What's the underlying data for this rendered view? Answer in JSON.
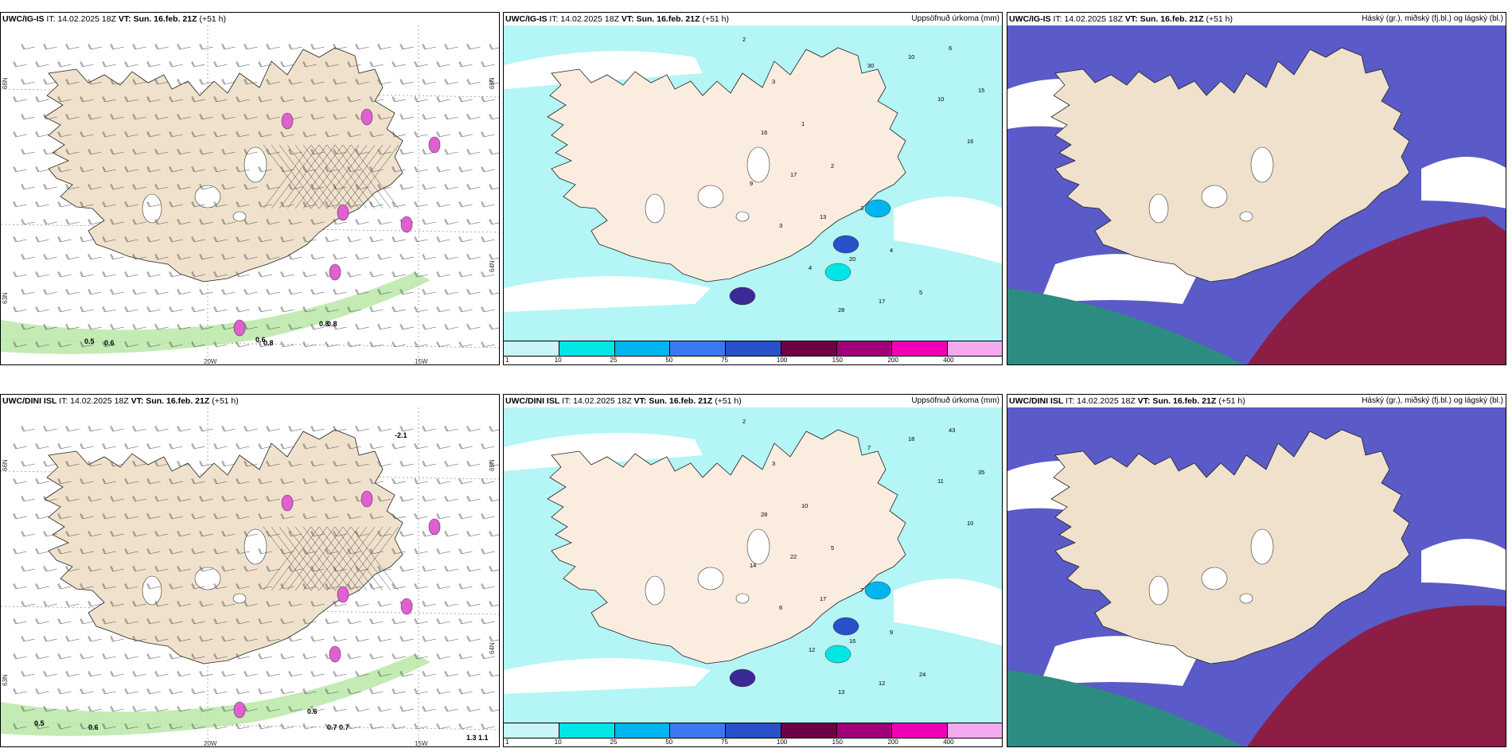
{
  "panels": [
    {
      "model": "UWC/IG-IS",
      "init": "IT: 14.02.2025 18Z",
      "valid": "VT: Sun. 16.feb. 21Z",
      "lead": "(+51 h)",
      "right_title": "",
      "kind": "wind"
    },
    {
      "model": "UWC/IG-IS",
      "init": "IT: 14.02.2025 18Z",
      "valid": "VT: Sun. 16.feb. 21Z",
      "lead": "(+51 h)",
      "right_title": "Uppsöfnuð úrkoma (mm)",
      "kind": "precip"
    },
    {
      "model": "UWC/IG-IS",
      "init": "IT: 14.02.2025 18Z",
      "valid": "VT: Sun. 16.feb. 21Z",
      "lead": "(+51 h)",
      "right_title": "Háský (gr.), miðský (fj.bl.) og lágský (bl.)",
      "kind": "cloud"
    },
    {
      "model": "UWC/DINI ISL",
      "init": "IT: 14.02.2025 18Z",
      "valid": "VT: Sun. 16.feb. 21Z",
      "lead": "(+51 h)",
      "right_title": "",
      "kind": "wind"
    },
    {
      "model": "UWC/DINI ISL",
      "init": "IT: 14.02.2025 18Z",
      "valid": "VT: Sun. 16.feb. 21Z",
      "lead": "(+51 h)",
      "right_title": "Uppsöfnuð úrkoma (mm)",
      "kind": "precip"
    },
    {
      "model": "UWC/DINI ISL",
      "init": "IT: 14.02.2025 18Z",
      "valid": "VT: Sun. 16.feb. 21Z",
      "lead": "(+51 h)",
      "right_title": "Háský (gr.), miðský (fj.bl.) og lágský (bl.)",
      "kind": "cloud"
    }
  ],
  "axis_labels": {
    "lon_20w": "20W",
    "lon_15w": "15W",
    "lat_66n": "66N",
    "lat_64n": "64N",
    "lat_65n": "65N",
    "lat_63n": "63N"
  },
  "precip_legend": {
    "labels": [
      "1",
      "10",
      "25",
      "50",
      "75",
      "100",
      "150",
      "200",
      "400"
    ],
    "colors": [
      "#c8f5f5",
      "#00e6e6",
      "#00b4f0",
      "#3c78f0",
      "#2850c8",
      "#6e0046",
      "#a00078",
      "#f000b4",
      "#f5aaf0"
    ]
  },
  "colors": {
    "land": "#f0e1cc",
    "land_precip": "#fbece0",
    "precip_light": "#b4f5f5",
    "precip_mid": "#00e6e6",
    "cloud_high": "#5a5ac8",
    "cloud_low": "#8c1e46",
    "cloud_teal": "#2d8c82",
    "green_band": "#b4e6a0"
  },
  "wind_labels_top": [
    "0.5",
    "0.6",
    "0.6",
    "0.8",
    "0.8",
    "0.8"
  ],
  "wind_labels_bottom": [
    "0.5",
    "0.6",
    "0.6",
    "0.7",
    "0.7",
    "1.3",
    "1.1",
    "-2.1"
  ],
  "precip_numbers_top": [
    "2",
    "3",
    "1",
    "2",
    "3",
    "4",
    "5",
    "6",
    "15",
    "16",
    "17",
    "13",
    "20",
    "17",
    "10",
    "10",
    "16",
    "9",
    "3",
    "4",
    "28",
    "30"
  ],
  "precip_numbers_bottom": [
    "2",
    "3",
    "10",
    "5",
    "7",
    "9",
    "24",
    "43",
    "35",
    "28",
    "22",
    "17",
    "16",
    "12",
    "18",
    "11",
    "10",
    "14",
    "6",
    "12",
    "13",
    "7"
  ]
}
